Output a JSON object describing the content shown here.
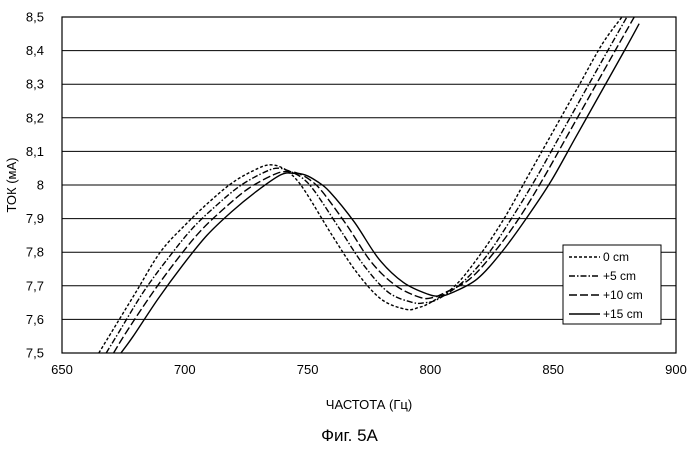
{
  "chart_data": {
    "type": "line",
    "xlabel": "ЧАСТОТА (Гц)",
    "ylabel": "ТОК (мА)",
    "xlim": [
      650,
      900
    ],
    "ylim": [
      7.5,
      8.5
    ],
    "x_ticks": [
      "650",
      "700",
      "750",
      "800",
      "850",
      "900"
    ],
    "y_ticks": [
      "7,5",
      "7,6",
      "7,7",
      "7,8",
      "7,9",
      "8",
      "8,1",
      "8,2",
      "8,3",
      "8,4",
      "8,5"
    ],
    "grid": "horizontal",
    "legend_position": "bottom-right",
    "series": [
      {
        "name": "0 cm",
        "dash": "short-dash",
        "x": [
          665,
          670,
          680,
          690,
          700,
          710,
          720,
          730,
          735,
          740,
          745,
          750,
          760,
          770,
          780,
          790,
          795,
          800,
          810,
          820,
          830,
          840,
          850,
          860,
          870,
          878
        ],
        "y": [
          7.5,
          7.56,
          7.68,
          7.8,
          7.88,
          7.95,
          8.01,
          8.05,
          8.06,
          8.05,
          8.02,
          7.97,
          7.85,
          7.74,
          7.66,
          7.63,
          7.635,
          7.65,
          7.7,
          7.79,
          7.9,
          8.03,
          8.16,
          8.29,
          8.42,
          8.5
        ]
      },
      {
        "name": "+5 cm",
        "dash": "dash-dot",
        "x": [
          668,
          673,
          683,
          693,
          703,
          713,
          723,
          733,
          738,
          743,
          748,
          753,
          763,
          773,
          783,
          793,
          798,
          803,
          813,
          823,
          833,
          843,
          853,
          863,
          873,
          880
        ],
        "y": [
          7.5,
          7.56,
          7.68,
          7.78,
          7.87,
          7.94,
          8.0,
          8.04,
          8.05,
          8.04,
          8.02,
          7.98,
          7.87,
          7.76,
          7.68,
          7.65,
          7.65,
          7.66,
          7.71,
          7.79,
          7.9,
          8.02,
          8.15,
          8.28,
          8.41,
          8.5
        ]
      },
      {
        "name": "+10 cm",
        "dash": "long-dash",
        "x": [
          671,
          676,
          686,
          696,
          706,
          716,
          726,
          736,
          741,
          746,
          751,
          756,
          766,
          776,
          786,
          796,
          801,
          806,
          816,
          826,
          836,
          846,
          856,
          866,
          876,
          883
        ],
        "y": [
          7.5,
          7.56,
          7.67,
          7.77,
          7.86,
          7.93,
          7.99,
          8.03,
          8.04,
          8.035,
          8.015,
          7.98,
          7.88,
          7.77,
          7.7,
          7.665,
          7.665,
          7.68,
          7.72,
          7.8,
          7.9,
          8.02,
          8.15,
          8.28,
          8.41,
          8.5
        ]
      },
      {
        "name": "+15 cm",
        "dash": "solid",
        "x": [
          674,
          679,
          689,
          699,
          709,
          719,
          729,
          739,
          744,
          749,
          754,
          759,
          769,
          779,
          789,
          799,
          804,
          809,
          819,
          829,
          839,
          849,
          859,
          869,
          879,
          885
        ],
        "y": [
          7.5,
          7.55,
          7.66,
          7.76,
          7.85,
          7.92,
          7.98,
          8.03,
          8.035,
          8.03,
          8.01,
          7.98,
          7.89,
          7.78,
          7.71,
          7.675,
          7.67,
          7.68,
          7.72,
          7.8,
          7.9,
          8.01,
          8.14,
          8.27,
          8.4,
          8.48
        ]
      }
    ]
  },
  "figure": {
    "caption": "Фиг. 5А"
  }
}
